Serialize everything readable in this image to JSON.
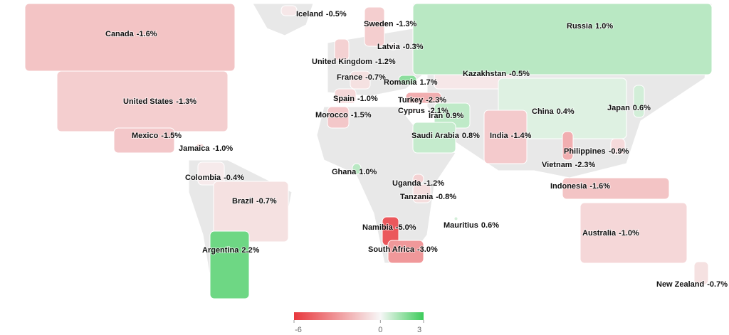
{
  "chart_data": {
    "type": "choropleth",
    "categories": [
      "Canada",
      "United States",
      "Mexico",
      "Jamaica",
      "Colombia",
      "Brazil",
      "Argentina",
      "Iceland",
      "Sweden",
      "Latvia",
      "United Kingdom",
      "France",
      "Romania",
      "Spain",
      "Turkey",
      "Cyprus",
      "Morocco",
      "Iran",
      "Saudi Arabia",
      "Kazakhstan",
      "Russia",
      "China",
      "Japan",
      "India",
      "Philippines",
      "Vietnam",
      "Indonesia",
      "Ghana",
      "Uganda",
      "Tanzania",
      "Namibia",
      "South Africa",
      "Mauritius",
      "Australia",
      "New Zealand"
    ],
    "values": [
      -1.6,
      -1.3,
      -1.5,
      -1.0,
      -0.4,
      -0.7,
      2.2,
      -0.5,
      -1.3,
      -0.3,
      -1.2,
      -0.7,
      1.7,
      -1.0,
      -2.3,
      -2.1,
      -1.5,
      0.9,
      0.8,
      -0.5,
      1.0,
      0.4,
      0.6,
      -1.4,
      -0.9,
      -2.3,
      -1.6,
      1.0,
      -1.2,
      -0.8,
      -5.0,
      -3.0,
      0.6,
      -1.0,
      -0.7
    ],
    "value_labels": [
      "-1.6%",
      "-1.3%",
      "-1.5%",
      "-1.0%",
      "-0.4%",
      "-0.7%",
      "2.2%",
      "-0.5%",
      "-1.3%",
      "-0.3%",
      "-1.2%",
      "-0.7%",
      "1.7%",
      "-1.0%",
      "-2.3%",
      "-2.1%",
      "-1.5%",
      "0.9%",
      "0.8%",
      "-0.5%",
      "1.0%",
      "0.4%",
      "0.6%",
      "-1.4%",
      "-0.9%",
      "-2.3%",
      "-1.6%",
      "1.0%",
      "-1.2%",
      "-0.8%",
      "-5.0%",
      "-3.0%",
      "0.6%",
      "-1.0%",
      "-0.7%"
    ],
    "colorscale": [
      "#e8383d",
      "#f7f7f7",
      "#3ccb5a"
    ],
    "colorbar": {
      "range": [
        -6,
        3
      ],
      "ticks": [
        -6,
        0,
        3
      ]
    }
  }
}
